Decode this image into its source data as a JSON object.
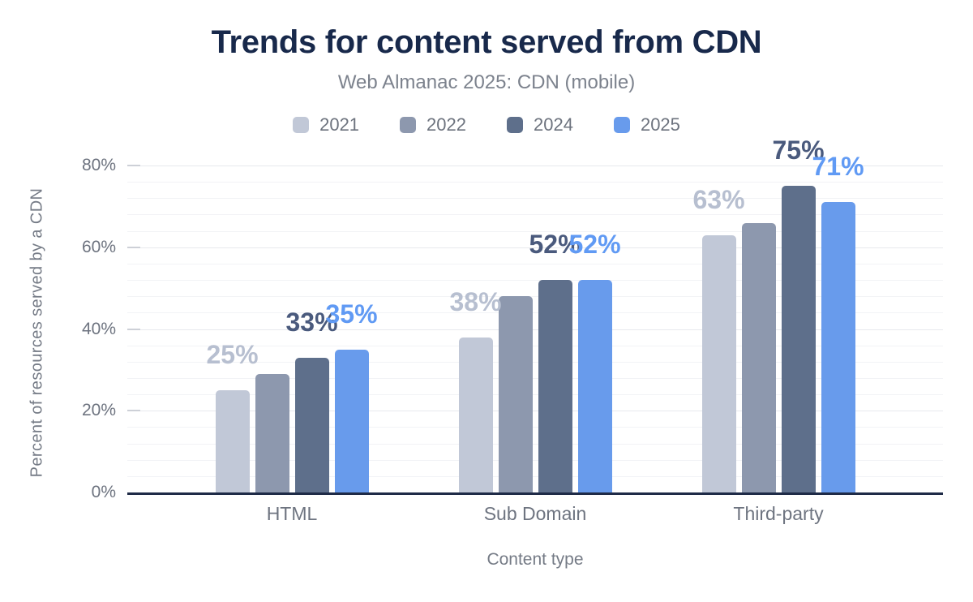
{
  "chart_data": {
    "type": "bar",
    "title": "Trends for content served from CDN",
    "subtitle": "Web Almanac 2025: CDN (mobile)",
    "xlabel": "Content type",
    "ylabel": "Percent of resources served by a CDN",
    "categories": [
      "HTML",
      "Sub Domain",
      "Third-party"
    ],
    "series": [
      {
        "name": "2021",
        "color": "#c1c8d7",
        "label_color": "#b7bfd0",
        "values": [
          25,
          38,
          63
        ],
        "data_labels": [
          "25%",
          "38%",
          "63%"
        ]
      },
      {
        "name": "2022",
        "color": "#8d98ae",
        "label_color": null,
        "values": [
          29,
          48,
          66
        ],
        "data_labels": [
          null,
          null,
          null
        ]
      },
      {
        "name": "2024",
        "color": "#5e6f8b",
        "label_color": "#4a5a7d",
        "values": [
          33,
          52,
          75
        ],
        "data_labels": [
          "33%",
          "52%",
          "75%"
        ]
      },
      {
        "name": "2025",
        "color": "#689bec",
        "label_color": "#609af4",
        "values": [
          35,
          52,
          71
        ],
        "data_labels": [
          "35%",
          "52%",
          "71%"
        ]
      }
    ],
    "y_axis": {
      "ticks": [
        "0%",
        "20%",
        "40%",
        "60%",
        "80%"
      ],
      "tick_values": [
        0,
        20,
        40,
        60,
        80
      ],
      "ylim": [
        0,
        80
      ],
      "minor_grid_step_pct": 4
    },
    "legend_position": "top",
    "grid": "horizontal",
    "colors": {
      "title": "#18294b",
      "subtitle": "#7c828d",
      "axis_text": "#6e7480",
      "axis_title": "#757b86",
      "axis_line": "#1f2b47",
      "grid_minor": "#f2f3f6",
      "grid_major": "#e7e9ed",
      "tick_mark": "#cdd0d7",
      "background": "#ffffff"
    }
  }
}
